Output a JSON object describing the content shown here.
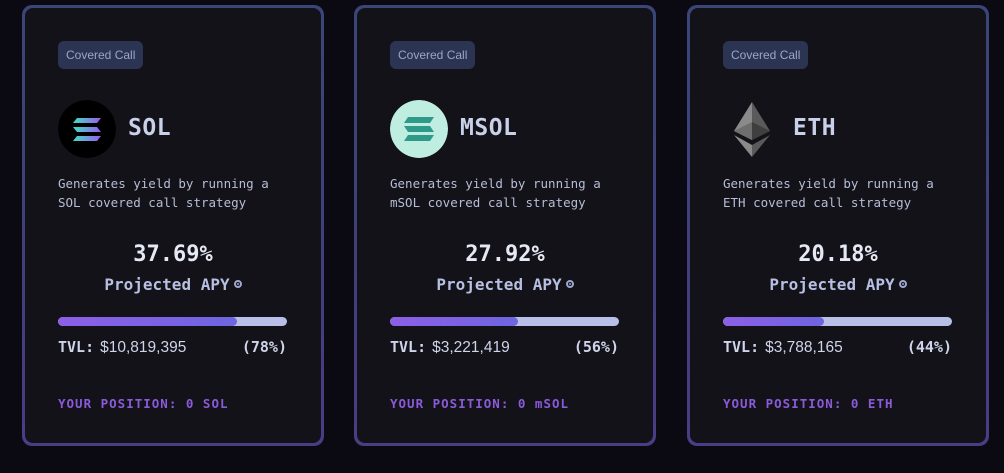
{
  "cards": [
    {
      "badge": "Covered Call",
      "token": "SOL",
      "icon": "solana-icon",
      "desc_line1": "Generates yield by running a",
      "desc_line2": "SOL covered call strategy",
      "apy": "37.69%",
      "apy_label": "Projected APY",
      "tvl_label": "TVL:",
      "tvl_value": "$10,819,395",
      "tvl_percent": "(78%)",
      "tvl_fraction": 0.78,
      "position": "YOUR POSITION: 0 SOL"
    },
    {
      "badge": "Covered Call",
      "token": "MSOL",
      "icon": "marinade-msol-icon",
      "desc_line1": "Generates yield by running a",
      "desc_line2": "mSOL covered call strategy",
      "apy": "27.92%",
      "apy_label": "Projected APY",
      "tvl_label": "TVL:",
      "tvl_value": "$3,221,419",
      "tvl_percent": "(56%)",
      "tvl_fraction": 0.56,
      "position": "YOUR POSITION: 0 mSOL"
    },
    {
      "badge": "Covered Call",
      "token": "ETH",
      "icon": "ethereum-icon",
      "desc_line1": "Generates yield by running a",
      "desc_line2": "ETH covered call strategy",
      "apy": "20.18%",
      "apy_label": "Projected APY",
      "tvl_label": "TVL:",
      "tvl_value": "$3,788,165",
      "tvl_percent": "(44%)",
      "tvl_fraction": 0.44,
      "position": "YOUR POSITION: 0 ETH"
    }
  ],
  "colors": {
    "background": "#0b0a12",
    "card": "#131219",
    "accent_purple": "#8b5ad9",
    "bar_track": "#b9c0e8"
  }
}
